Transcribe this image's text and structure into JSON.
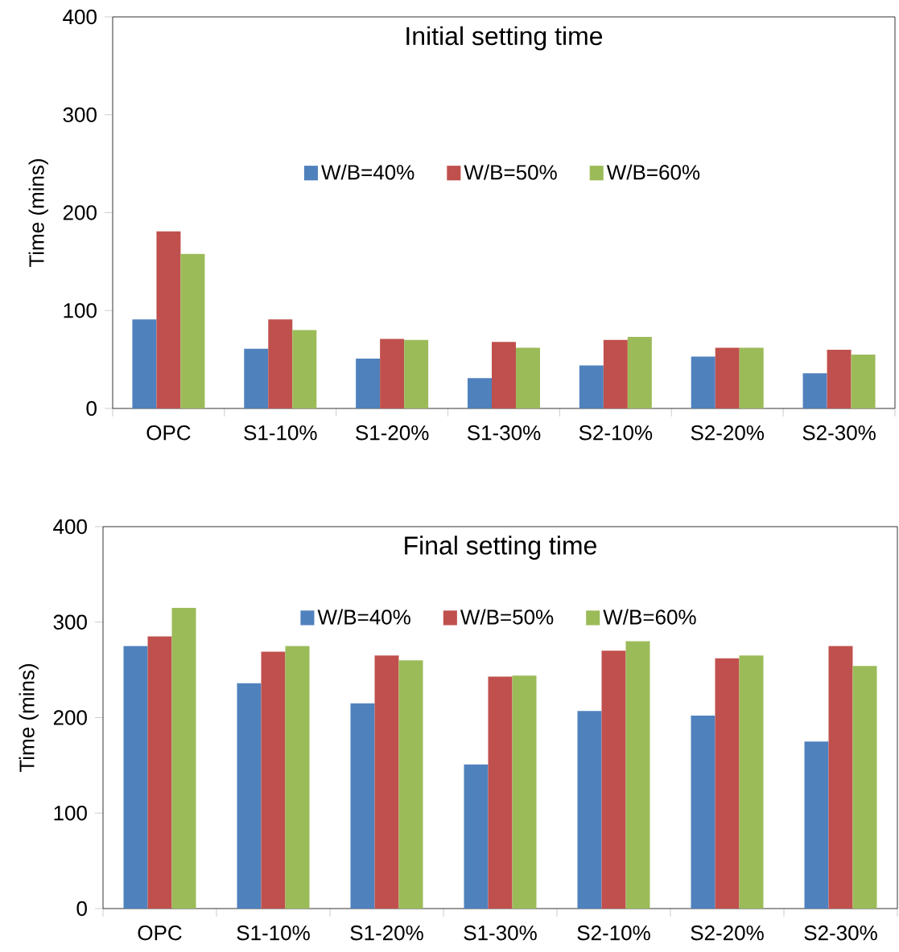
{
  "chart_data": [
    {
      "type": "bar",
      "title": "Initial setting  time",
      "ylabel": "Time (mins)",
      "categories": [
        "OPC",
        "S1-10%",
        "S1-20%",
        "S1-30%",
        "S2-10%",
        "S2-20%",
        "S2-30%"
      ],
      "series": [
        {
          "name": "W/B=40%",
          "color": "#4f81bd",
          "values": [
            91,
            61,
            51,
            31,
            44,
            53,
            36
          ]
        },
        {
          "name": "W/B=50%",
          "color": "#c0504d",
          "values": [
            181,
            91,
            71,
            68,
            70,
            62,
            60
          ]
        },
        {
          "name": "W/B=60%",
          "color": "#9bbb59",
          "values": [
            158,
            80,
            70,
            62,
            73,
            62,
            55
          ]
        }
      ],
      "ylim": [
        0,
        400
      ],
      "yticks": [
        0,
        100,
        200,
        300,
        400
      ],
      "grid": false,
      "legend": "top"
    },
    {
      "type": "bar",
      "title": "Final setting  time",
      "ylabel": "Time (mins)",
      "categories": [
        "OPC",
        "S1-10%",
        "S1-20%",
        "S1-30%",
        "S2-10%",
        "S2-20%",
        "S2-30%"
      ],
      "series": [
        {
          "name": "W/B=40%",
          "color": "#4f81bd",
          "values": [
            275,
            236,
            215,
            151,
            207,
            202,
            175
          ]
        },
        {
          "name": "W/B=50%",
          "color": "#c0504d",
          "values": [
            285,
            269,
            265,
            243,
            270,
            262,
            275
          ]
        },
        {
          "name": "W/B=60%",
          "color": "#9bbb59",
          "values": [
            315,
            275,
            260,
            244,
            280,
            265,
            254
          ]
        }
      ],
      "ylim": [
        0,
        400
      ],
      "yticks": [
        0,
        100,
        200,
        300,
        400
      ],
      "grid": false,
      "legend": "top"
    }
  ]
}
